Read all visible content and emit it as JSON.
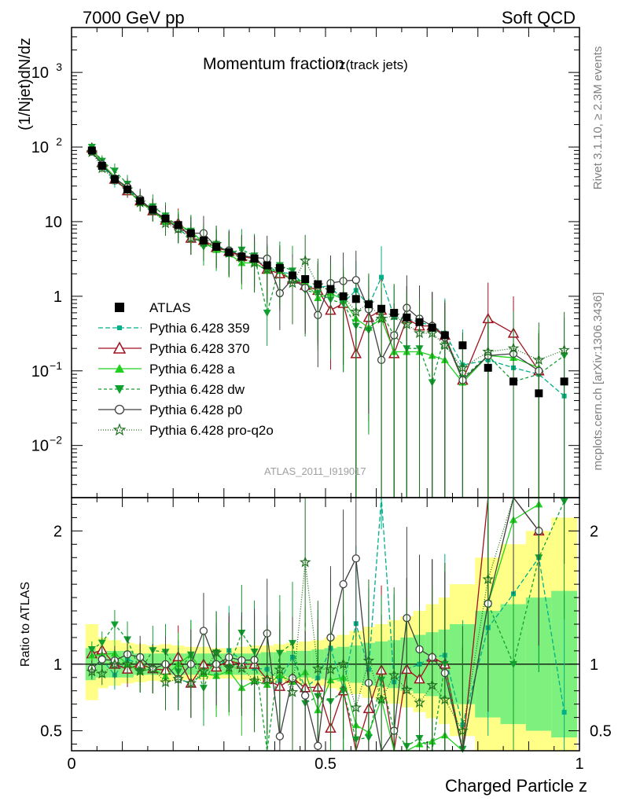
{
  "header": {
    "left": "7000 GeV pp",
    "right": "Soft QCD"
  },
  "side_labels": {
    "rivet": "Rivet 3.1.10, ≥ 2.3M events",
    "mcplots": "mcplots.cern.ch [arXiv:1306.3436]"
  },
  "watermark": "ATLAS_2011_I919017",
  "chart_data": [
    {
      "type": "scatter",
      "title": "Momentum fraction",
      "title_sub": "z(track jets)",
      "ylabel": "(1/Njet)dN/dz",
      "xlabel": "Charged Particle z",
      "xlim": [
        0,
        1
      ],
      "ylim": [
        0.002,
        4000
      ],
      "yscale": "log",
      "yticks": [
        "10^{-2}",
        "10^{-1}",
        "1",
        "10",
        "10^{2}",
        "10^{3}"
      ],
      "x": [
        0.04,
        0.06,
        0.085,
        0.11,
        0.135,
        0.16,
        0.185,
        0.21,
        0.235,
        0.26,
        0.285,
        0.31,
        0.335,
        0.36,
        0.385,
        0.41,
        0.435,
        0.46,
        0.485,
        0.51,
        0.535,
        0.56,
        0.585,
        0.61,
        0.635,
        0.66,
        0.685,
        0.71,
        0.735,
        0.77,
        0.82,
        0.87,
        0.92,
        0.97
      ],
      "legend_position": "left",
      "series": [
        {
          "name": "ATLAS",
          "color": "#000000",
          "marker": "square",
          "values": [
            90,
            56,
            37,
            27,
            19,
            14.5,
            11,
            9,
            7,
            5.6,
            4.6,
            3.9,
            3.4,
            3.2,
            2.6,
            2.4,
            1.9,
            1.7,
            1.45,
            1.25,
            1.0,
            0.92,
            0.78,
            0.68,
            0.6,
            0.52,
            0.45,
            0.38,
            0.3,
            0.22,
            0.11,
            0.072,
            0.05,
            0.072
          ],
          "err": [
            0.08,
            0.08,
            0.08,
            0.08,
            0.08,
            0.08,
            0.08,
            0.08,
            0.08,
            0.08,
            0.08,
            0.08,
            0.08,
            0.08,
            0.08,
            0.08,
            0.08,
            0.08,
            0.08,
            0.08,
            0.08,
            0.08,
            0.08,
            0.08,
            0.08,
            0.08,
            0.08,
            0.08,
            0.08,
            0.08,
            0.08,
            0.08,
            0.08,
            0.08
          ]
        },
        {
          "name": "Pythia 6.428 359",
          "color": "#00b086",
          "marker": "square-small",
          "dash": "6,3",
          "values": [
            86,
            58,
            34,
            28,
            19,
            14,
            11,
            8,
            6,
            5.2,
            4.2,
            4.3,
            3.5,
            3.1,
            2.5,
            2.1,
            2.0,
            1.4,
            1.3,
            1.4,
            0.82,
            1.2,
            0.75,
            1.8,
            0.52,
            0.5,
            0.45,
            0.4,
            0.32,
            0.12,
            0.14,
            0.11,
            0.09,
            0.046
          ]
        },
        {
          "name": "Pythia 6.428 370",
          "color": "#a01020",
          "marker": "triangle-open",
          "dash": "",
          "values": [
            97,
            62,
            37,
            26,
            19,
            14,
            10.5,
            9.5,
            6,
            5.6,
            4.5,
            4,
            3.4,
            3.2,
            2.3,
            2.0,
            1.7,
            1.4,
            1.2,
            0.65,
            0.8,
            0.17,
            0.52,
            0.65,
            0.17,
            0.5,
            0.4,
            0.4,
            0.3,
            0.075,
            0.5,
            0.32,
            0.1,
            null
          ]
        },
        {
          "name": "Pythia 6.428 a",
          "color": "#20d020",
          "marker": "triangle",
          "dash": "",
          "values": [
            96,
            60,
            40,
            27,
            18,
            14,
            10,
            9,
            7.5,
            5.2,
            4.2,
            3.7,
            2.8,
            2.8,
            2.2,
            2.2,
            1.65,
            1.6,
            0.95,
            1.1,
            0.9,
            0.5,
            0.38,
            0.5,
            0.18,
            0.18,
            0.18,
            0.16,
            0.14,
            0.07,
            0.16,
            0.15,
            0.11,
            null
          ]
        },
        {
          "name": "Pythia 6.428 dw",
          "color": "#10a030",
          "marker": "triangle-down",
          "dash": "4,3",
          "values": [
            100,
            65,
            48,
            32,
            18,
            16,
            12,
            8.5,
            7.5,
            4.6,
            5,
            3.8,
            4.2,
            3.5,
            0.6,
            2.6,
            2.2,
            1.2,
            1.1,
            0.9,
            0.8,
            0.4,
            0.35,
            0.6,
            0.3,
            0.2,
            0.2,
            0.07,
            0.3,
            0.08,
            0.16,
            0.072,
            0.09,
            0.16
          ]
        },
        {
          "name": "Pythia 6.428 p0",
          "color": "#404040",
          "marker": "circle-open",
          "dash": "",
          "values": [
            87,
            58,
            38,
            29,
            20,
            14,
            11,
            8,
            7,
            7,
            4.6,
            4.1,
            3.5,
            3.3,
            3.2,
            1.1,
            1.7,
            1.3,
            0.56,
            1.5,
            1.6,
            1.65,
            0.67,
            0.14,
            0.3,
            0.7,
            0.5,
            0.4,
            0.28,
            0.075,
            0.16,
            0.17,
            0.1,
            null
          ]
        },
        {
          "name": "Pythia 6.428 pro-q2o",
          "color": "#207020",
          "marker": "star-open",
          "dash": "1,2",
          "values": [
            85,
            52,
            37,
            27,
            18,
            14,
            9.5,
            8,
            6,
            5.3,
            5,
            3.8,
            3.3,
            2.8,
            2.3,
            2.3,
            1.5,
            3.0,
            1.4,
            1.2,
            1.0,
            0.62,
            0.8,
            0.5,
            0.55,
            0.42,
            0.32,
            0.32,
            0.22,
            0.11,
            0.18,
            0.2,
            0.14,
            0.19
          ]
        }
      ]
    },
    {
      "type": "scatter",
      "title": "",
      "ylabel": "Ratio to ATLAS",
      "xlabel": "Charged Particle z",
      "xlim": [
        0,
        1
      ],
      "ylim": [
        0.35,
        2.25
      ],
      "yticks": [
        "0.5",
        "1",
        "2"
      ],
      "xticks": [
        "0",
        "0.5",
        "1"
      ],
      "band_inner": [
        0.12,
        0.1,
        0.1,
        0.1,
        0.08,
        0.08,
        0.08,
        0.08,
        0.08,
        0.08,
        0.08,
        0.08,
        0.08,
        0.08,
        0.09,
        0.09,
        0.1,
        0.1,
        0.11,
        0.12,
        0.13,
        0.14,
        0.16,
        0.17,
        0.18,
        0.2,
        0.22,
        0.24,
        0.26,
        0.3,
        0.4,
        0.45,
        0.5,
        0.55
      ],
      "band_outer": [
        0.3,
        0.2,
        0.18,
        0.16,
        0.15,
        0.14,
        0.15,
        0.14,
        0.13,
        0.13,
        0.12,
        0.12,
        0.13,
        0.14,
        0.14,
        0.15,
        0.16,
        0.17,
        0.18,
        0.2,
        0.22,
        0.25,
        0.28,
        0.3,
        0.33,
        0.36,
        0.4,
        0.45,
        0.5,
        0.6,
        0.8,
        0.9,
        1.0,
        1.1
      ],
      "band_colors": {
        "inner": "#7ef07e",
        "outer": "#ffff88"
      }
    }
  ]
}
